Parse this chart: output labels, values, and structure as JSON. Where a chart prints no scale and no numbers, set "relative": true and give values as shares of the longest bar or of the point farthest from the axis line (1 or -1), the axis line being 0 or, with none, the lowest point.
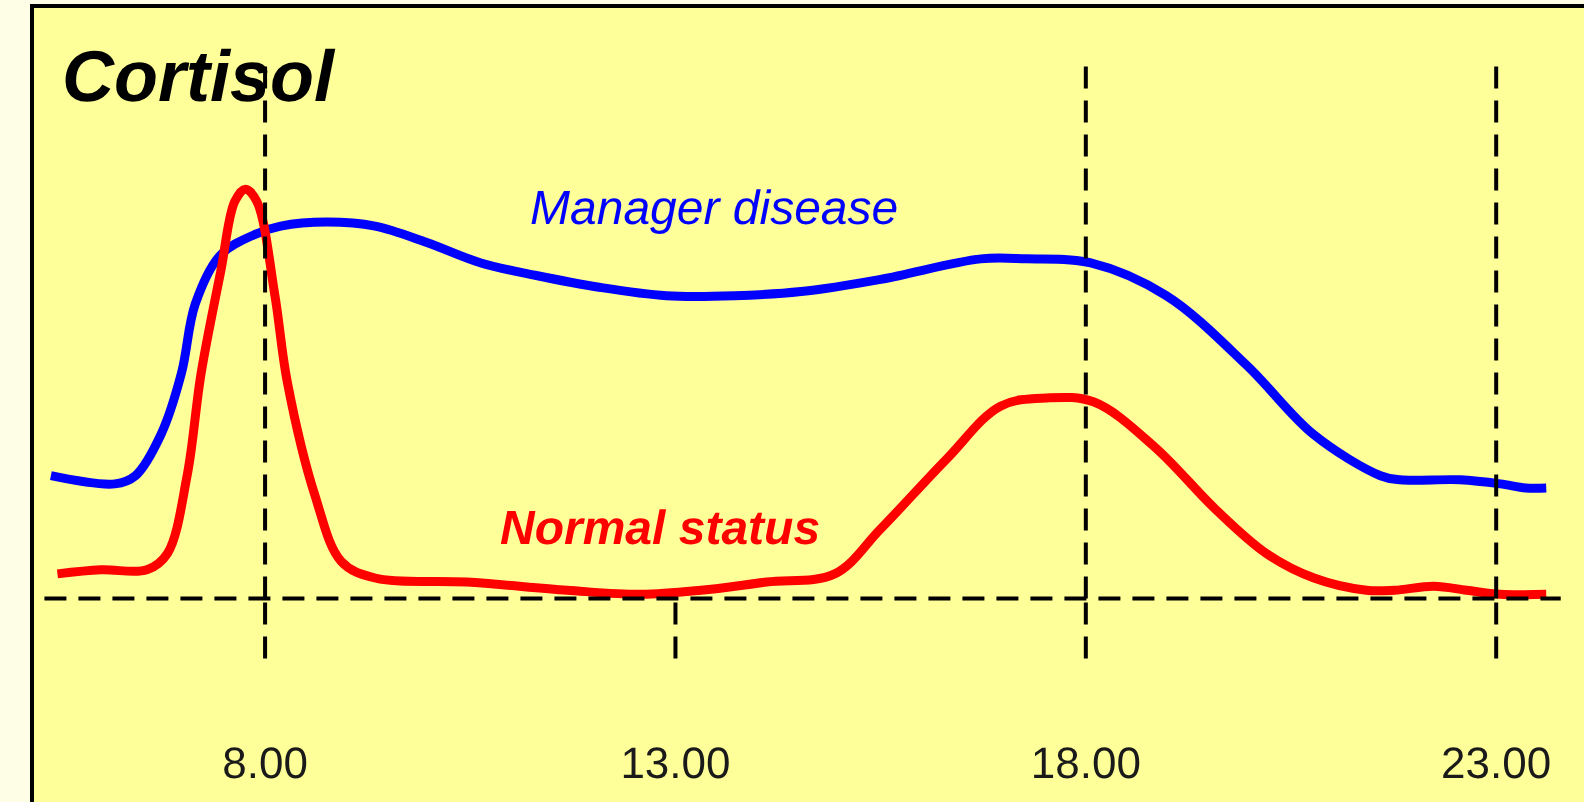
{
  "chart_data": {
    "type": "line",
    "title": "Cortisol",
    "relative": true,
    "tick_labels": "x",
    "xlim": [
      5.16,
      24.07
    ],
    "xticks": [
      {
        "value": 8,
        "label": "8.00"
      },
      {
        "value": 13,
        "label": "13.00"
      },
      {
        "value": 18,
        "label": "18.00"
      },
      {
        "value": 23,
        "label": "23.00"
      }
    ],
    "series": [
      {
        "name": "Manager disease",
        "color": "#0000ff",
        "x": [
          5.39,
          6.17,
          6.42,
          6.73,
          6.98,
          7.15,
          7.46,
          7.88,
          8.19,
          8.75,
          9.34,
          9.97,
          10.63,
          11.29,
          12.09,
          12.89,
          13.72,
          14.53,
          15.5,
          16.72,
          17.28,
          18.06,
          18.98,
          19.96,
          20.78,
          21.59,
          21.83,
          22.56,
          23.05,
          23.36,
          23.61
        ],
        "values": [
          0.3,
          0.28,
          0.3,
          0.4,
          0.55,
          0.72,
          0.84,
          0.89,
          0.91,
          0.92,
          0.91,
          0.87,
          0.82,
          0.79,
          0.76,
          0.74,
          0.74,
          0.75,
          0.78,
          0.83,
          0.83,
          0.82,
          0.74,
          0.57,
          0.4,
          0.3,
          0.29,
          0.29,
          0.28,
          0.27,
          0.27
        ]
      },
      {
        "name": "Normal status",
        "color": "#ff0000",
        "x": [
          5.47,
          6.0,
          6.56,
          6.81,
          7.05,
          7.22,
          7.46,
          7.63,
          7.76,
          7.9,
          8.12,
          8.27,
          8.61,
          8.93,
          9.34,
          10.46,
          11.68,
          12.58,
          13.31,
          14.11,
          14.94,
          15.5,
          16.3,
          16.96,
          17.52,
          18.1,
          18.84,
          19.57,
          20.2,
          20.78,
          21.42,
          21.76,
          22.24,
          22.64,
          23.05,
          23.61
        ],
        "values": [
          0.06,
          0.07,
          0.07,
          0.11,
          0.3,
          0.55,
          0.8,
          0.97,
          1.0,
          0.97,
          0.74,
          0.53,
          0.25,
          0.09,
          0.05,
          0.04,
          0.02,
          0.01,
          0.02,
          0.04,
          0.06,
          0.17,
          0.34,
          0.47,
          0.49,
          0.48,
          0.37,
          0.22,
          0.11,
          0.05,
          0.02,
          0.02,
          0.03,
          0.02,
          0.01,
          0.01
        ]
      }
    ],
    "ref_lines": [
      {
        "axis": "x",
        "value": 8,
        "color": "#000000",
        "line_style": "dashed"
      },
      {
        "axis": "x",
        "value": 18,
        "color": "#000000",
        "line_style": "dashed"
      },
      {
        "axis": "x",
        "value": 23,
        "color": "#000000",
        "line_style": "dashed"
      }
    ]
  }
}
